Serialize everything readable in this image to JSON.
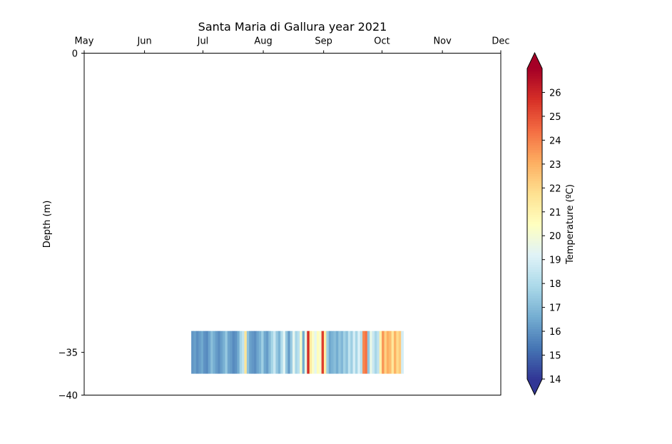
{
  "chart_data": {
    "type": "heatmap",
    "title": "Santa Maria di Gallura year 2021",
    "ylabel": "Depth (m)",
    "xlabel": "",
    "x_tick_labels": [
      "May",
      "Jun",
      "Jul",
      "Aug",
      "Sep",
      "Oct",
      "Nov",
      "Dec"
    ],
    "x_tick_dates": [
      "2021-05-01",
      "2021-06-01",
      "2021-07-01",
      "2021-08-01",
      "2021-09-01",
      "2021-10-01",
      "2021-11-01",
      "2021-12-01"
    ],
    "xlim": [
      "2021-05-01",
      "2021-12-01"
    ],
    "y_ticks": [
      0,
      -35,
      -40
    ],
    "y_tick_labels": [
      "0",
      "−35",
      "−40"
    ],
    "ylim": [
      -40,
      0
    ],
    "x_ticks_position": "top",
    "grid": false,
    "depth_band_m": [
      -37.5,
      -32.5
    ],
    "series": [
      {
        "depth": -35,
        "start_date": "2021-06-25",
        "end_date": "2021-10-12",
        "temperature": [
          16.1,
          16.3,
          15.9,
          16.2,
          16.5,
          16.0,
          15.8,
          16.4,
          17.1,
          16.6,
          16.2,
          15.9,
          16.3,
          16.7,
          17.4,
          16.4,
          16.2,
          15.8,
          16.0,
          16.6,
          17.8,
          18.4,
          21.6,
          17.2,
          16.3,
          16.1,
          15.9,
          16.4,
          16.8,
          17.6,
          16.5,
          16.2,
          17.0,
          17.8,
          18.6,
          17.4,
          16.8,
          18.1,
          19.3,
          17.3,
          16.2,
          17.5,
          19.4,
          17.8,
          18.3,
          20.2,
          16.6,
          19.6,
          25.8,
          21.4,
          20.3,
          19.4,
          20.6,
          20.1,
          25.4,
          21.3,
          17.6,
          16.5,
          16.8,
          17.1,
          16.6,
          17.3,
          16.9,
          17.7,
          17.2,
          18.4,
          17.6,
          18.9,
          17.8,
          19.1,
          18.2,
          23.9,
          24.3,
          17.3,
          19.6,
          18.6,
          17.8,
          18.4,
          21.1,
          23.6,
          22.2,
          23.1,
          22.7,
          21.5,
          23.0,
          21.9,
          22.4,
          18.9
        ]
      }
    ],
    "colorbar": {
      "label": "Temperature (ºC)",
      "min": 14,
      "max": 27,
      "ticks": [
        14,
        15,
        16,
        17,
        18,
        19,
        20,
        21,
        22,
        23,
        24,
        25,
        26
      ],
      "extend": "both",
      "colormap": "RdYlBu_r",
      "colors": [
        "#313695",
        "#4575b4",
        "#74add1",
        "#abd9e9",
        "#e0f3f8",
        "#ffffbf",
        "#fee090",
        "#fdae61",
        "#f46d43",
        "#d73027",
        "#a50026"
      ]
    }
  }
}
